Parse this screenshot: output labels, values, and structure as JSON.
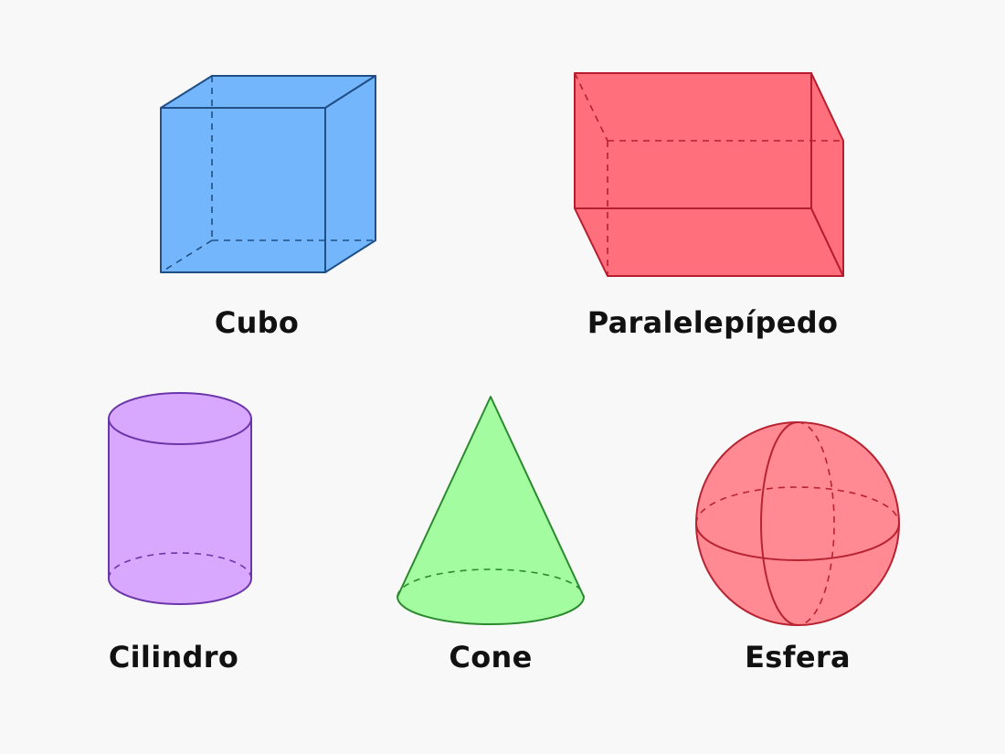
{
  "shapes": [
    {
      "id": "cube",
      "label": "Cubo",
      "fill": "#74b6fb",
      "stroke": "#1f4f86",
      "icon": "cube-icon"
    },
    {
      "id": "box",
      "label": "Paralelepípedo",
      "fill": "#ff707c",
      "stroke": "#b81d2f",
      "icon": "rectangular-prism-icon"
    },
    {
      "id": "cylinder",
      "label": "Cilindro",
      "fill": "#d8a8ff",
      "stroke": "#6b36a8",
      "icon": "cylinder-icon"
    },
    {
      "id": "cone",
      "label": "Cone",
      "fill": "#a4fca0",
      "stroke": "#2b8a2e",
      "icon": "cone-icon"
    },
    {
      "id": "sphere",
      "label": "Esfera",
      "fill": "#ff8a94",
      "stroke": "#b82331",
      "icon": "sphere-icon"
    }
  ]
}
